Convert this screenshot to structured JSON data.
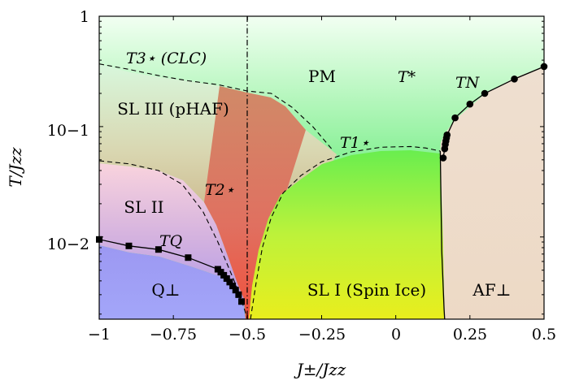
{
  "chart_data": {
    "type": "line",
    "xlabel": "J±/Jzz",
    "ylabel": "T/Jzz",
    "xlim": [
      -1,
      0.5
    ],
    "ylim": [
      0.0018,
      1
    ],
    "y_scale": "log",
    "grid": false,
    "x_ticks": [
      {
        "value": -1,
        "label": "−1"
      },
      {
        "value": -0.75,
        "label": "−0.75"
      },
      {
        "value": -0.5,
        "label": "−0.5"
      },
      {
        "value": -0.25,
        "label": "−0.25"
      },
      {
        "value": 0,
        "label": "0"
      },
      {
        "value": 0.25,
        "label": "0.25"
      },
      {
        "value": 0.5,
        "label": "0.5"
      }
    ],
    "y_ticks": [
      {
        "value": 1,
        "label": "1"
      },
      {
        "value": 0.1,
        "label": "10−1"
      },
      {
        "value": 0.01,
        "label": "10−2"
      }
    ],
    "vertical_line": {
      "x": -0.5,
      "style": "dash-dot"
    },
    "regions": [
      {
        "name": "PM",
        "x": -0.26,
        "y": 0.33
      },
      {
        "name": "SL III (pHAF)",
        "x": -0.79,
        "y": 0.135
      },
      {
        "name": "SL II",
        "x": -0.85,
        "y": 0.021
      },
      {
        "name": "Q⊥",
        "x": -0.76,
        "y": 0.0036
      },
      {
        "name": "SL I (Spin Ice)",
        "x": -0.13,
        "y": 0.0036
      },
      {
        "name": "AF⊥",
        "x": 0.34,
        "y": 0.0036
      }
    ],
    "curve_labels": [
      {
        "text": "T3⋆ (CLC)",
        "x": -0.91,
        "y": 0.4
      },
      {
        "text": "T*",
        "x": 0.05,
        "y": 0.33
      },
      {
        "text": "TN",
        "x": 0.25,
        "y": 0.22
      },
      {
        "text": "T1⋆",
        "x": -0.16,
        "y": 0.063
      },
      {
        "text": "T2⋆",
        "x": -0.6,
        "y": 0.029
      },
      {
        "text": "TQ",
        "x": -0.78,
        "y": 0.0105
      }
    ],
    "series": [
      {
        "style": "solid-square-markers",
        "x": [
          -1.0,
          -0.9,
          -0.8,
          -0.7,
          -0.6,
          -0.59,
          -0.58,
          -0.57,
          -0.56,
          -0.55,
          -0.54,
          -0.53,
          -0.52
        ],
        "y": [
          0.0095,
          0.0083,
          0.0077,
          0.0065,
          0.0051,
          0.0048,
          0.0045,
          0.0042,
          0.0039,
          0.0036,
          0.0033,
          0.003,
          0.0026
        ]
      },
      {
        "style": "solid-circle-markers",
        "x": [
          0.16,
          0.165,
          0.167,
          0.169,
          0.171,
          0.173,
          0.2,
          0.25,
          0.3,
          0.4,
          0.5
        ],
        "y": [
          0.052,
          0.063,
          0.069,
          0.074,
          0.079,
          0.084,
          0.12,
          0.16,
          0.2,
          0.27,
          0.35
        ]
      },
      {
        "style": "solid",
        "x": [
          0.15,
          0.155,
          0.16,
          0.163,
          0.165,
          0.167
        ],
        "y": [
          0.06,
          0.0075,
          0.0035,
          0.0022,
          0.0018,
          0.0018
        ]
      },
      {
        "style": "dashed",
        "x": [
          -1.0,
          -0.9,
          -0.8,
          -0.7,
          -0.6,
          -0.5,
          -0.42,
          -0.35,
          -0.28,
          -0.21
        ],
        "y": [
          0.37,
          0.33,
          0.29,
          0.26,
          0.24,
          0.21,
          0.2,
          0.15,
          0.1,
          0.06
        ]
      },
      {
        "style": "dashed",
        "x": [
          -1.0,
          -0.9,
          -0.8,
          -0.72,
          -0.65,
          -0.6,
          -0.56,
          -0.53,
          -0.51,
          -0.5
        ],
        "y": [
          0.049,
          0.046,
          0.04,
          0.03,
          0.017,
          0.009,
          0.005,
          0.0032,
          0.0022,
          0.0018
        ]
      },
      {
        "style": "dashed",
        "x": [
          -0.49,
          -0.47,
          -0.45,
          -0.42,
          -0.38,
          -0.32,
          -0.25,
          -0.15,
          -0.05,
          0.05,
          0.1,
          0.15
        ],
        "y": [
          0.0018,
          0.004,
          0.008,
          0.015,
          0.025,
          0.036,
          0.048,
          0.059,
          0.065,
          0.066,
          0.064,
          0.06
        ]
      }
    ]
  }
}
